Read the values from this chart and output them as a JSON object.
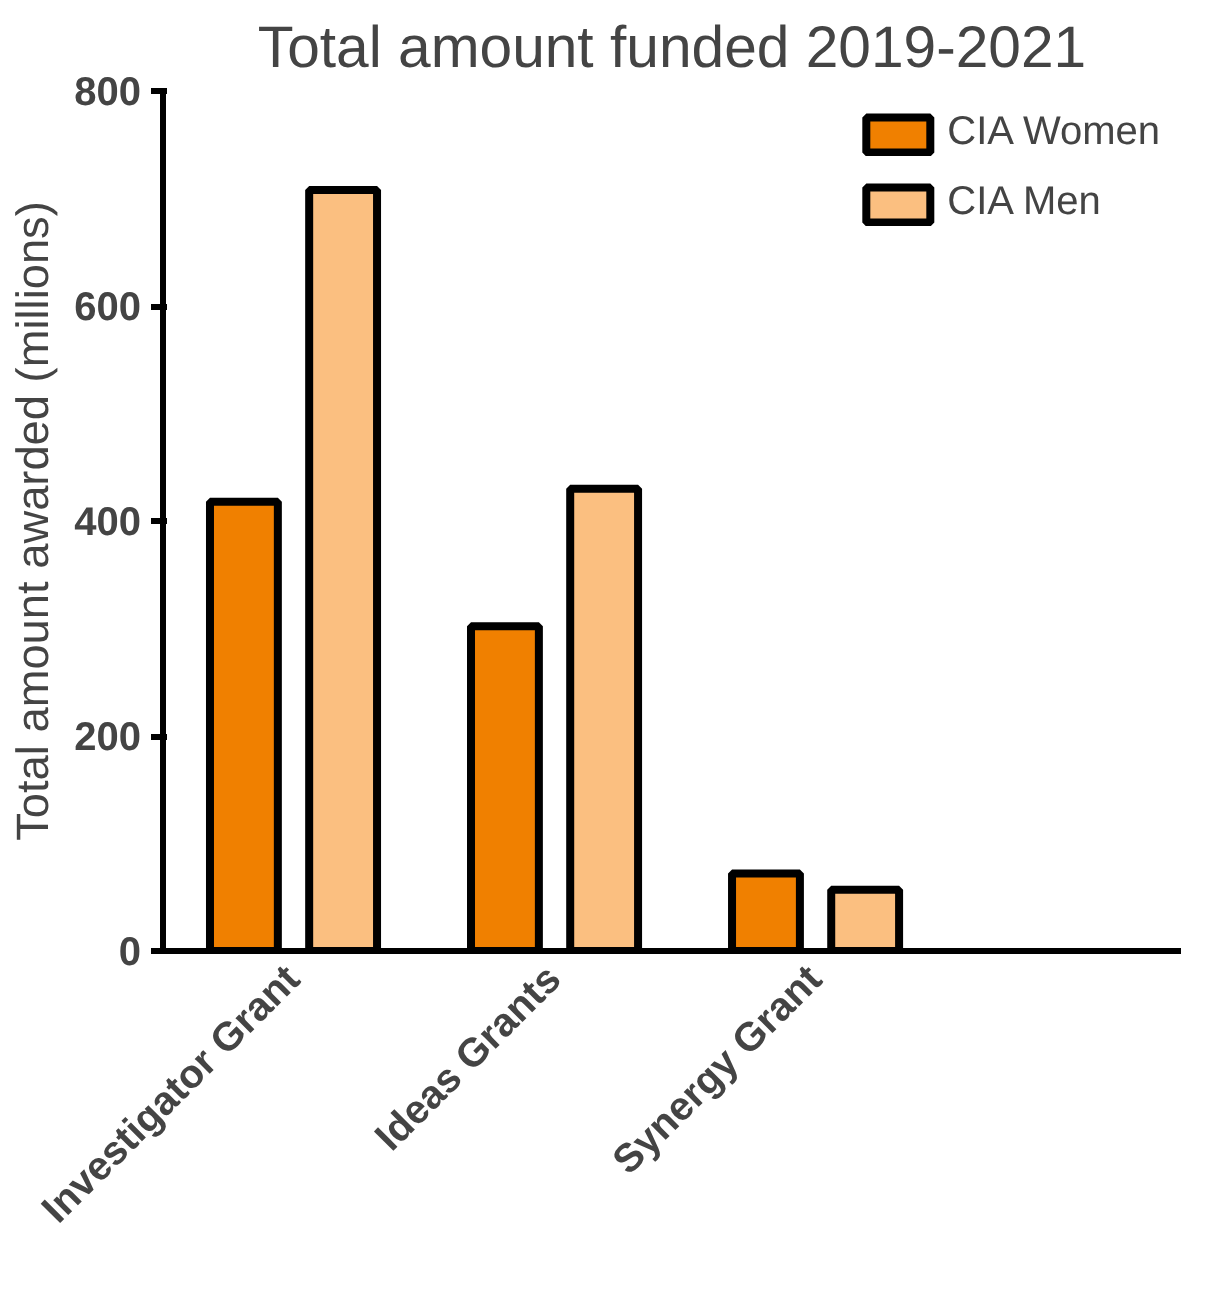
{
  "chart_data": {
    "type": "bar",
    "title": "Total amount funded 2019-2021",
    "ylabel": "Total amount awarded (millions)",
    "categories": [
      "Investigator Grant",
      "Ideas Grants",
      "Synergy Grant"
    ],
    "series": [
      {
        "name": "CIA Women",
        "color": "#f08000",
        "values": [
          418,
          302,
          72
        ]
      },
      {
        "name": "CIA Men",
        "color": "#fbbf80",
        "values": [
          708,
          430,
          57
        ]
      }
    ],
    "ylim": [
      0,
      800
    ],
    "yticks": [
      0,
      200,
      400,
      600,
      800
    ],
    "grid": false,
    "legend": "top right"
  }
}
